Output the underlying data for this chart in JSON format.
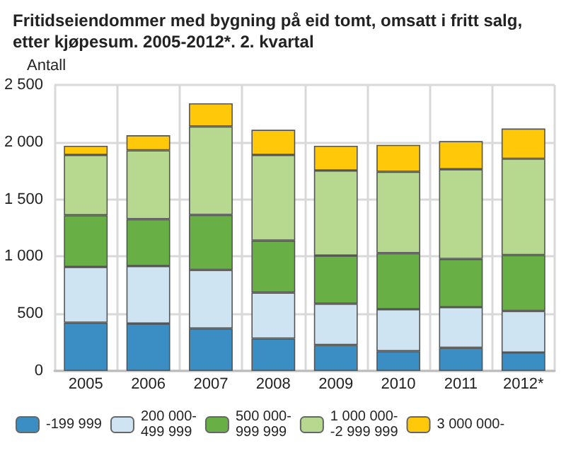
{
  "chart_data": {
    "type": "bar",
    "title": "Fritidseiendommer med bygning på eid tomt, omsatt i fritt salg, etter kjøpesum. 2005-2012*. 2. kvartal",
    "ylabel": "Antall",
    "categories": [
      "2005",
      "2006",
      "2007",
      "2008",
      "2009",
      "2010",
      "2011",
      "2012*"
    ],
    "stacked": true,
    "series": [
      {
        "name": "-199 999",
        "color": "#3a8ec4",
        "values": [
          422,
          414,
          370,
          282,
          227,
          172,
          202,
          161
        ]
      },
      {
        "name": "200 000-\n499 999",
        "color": "#cfe4f2",
        "values": [
          487,
          502,
          513,
          403,
          360,
          367,
          355,
          363
        ]
      },
      {
        "name": "500 000-\n999 999",
        "color": "#68b045",
        "values": [
          451,
          411,
          481,
          455,
          421,
          491,
          422,
          488
        ]
      },
      {
        "name": "1 000 000-\n-2 999 999",
        "color": "#b6d88f",
        "values": [
          528,
          601,
          773,
          748,
          744,
          711,
          784,
          843
        ]
      },
      {
        "name": "3 000 000-",
        "color": "#ffc90a",
        "values": [
          80,
          132,
          202,
          220,
          216,
          235,
          246,
          264
        ]
      }
    ],
    "ylim": [
      0,
      2500
    ],
    "yticks": [
      {
        "value": 0,
        "label": "0"
      },
      {
        "value": 500,
        "label": "500"
      },
      {
        "value": 1000,
        "label": "1 000"
      },
      {
        "value": 1500,
        "label": "1 500"
      },
      {
        "value": 2000,
        "label": "2 000"
      },
      {
        "value": 2500,
        "label": "2 500"
      }
    ],
    "grid": true,
    "legend": "bottom"
  }
}
